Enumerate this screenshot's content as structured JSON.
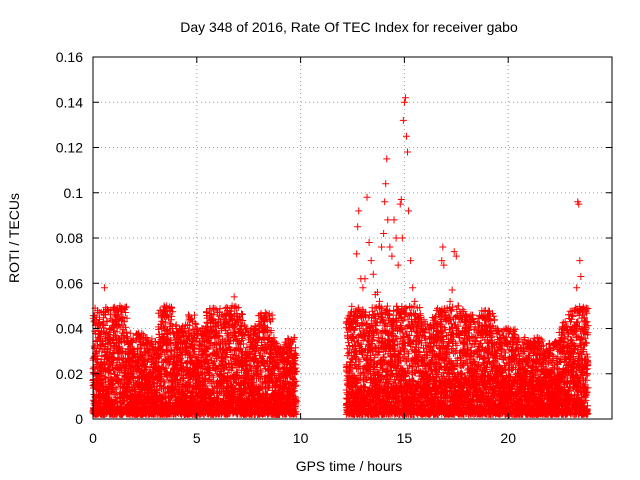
{
  "chart_data": {
    "type": "scatter",
    "title": "Day 348 of 2016, Rate Of TEC Index for receiver gabo",
    "xlabel": "GPS time / hours",
    "ylabel": "ROTI / TECUs",
    "xlim": [
      0,
      24
    ],
    "ylim": [
      0,
      0.16
    ],
    "xticks": [
      0,
      5,
      10,
      15,
      20,
      25
    ],
    "xtick_labels": [
      "0",
      "5",
      "10",
      "15",
      "20",
      ""
    ],
    "yticks": [
      0,
      0.02,
      0.04,
      0.06,
      0.08,
      0.1,
      0.12,
      0.14,
      0.16
    ],
    "ytick_labels": [
      "0",
      "0.02",
      "0.04",
      "0.06",
      "0.08",
      "0.1",
      "0.12",
      "0.14",
      "0.16"
    ],
    "grid": true,
    "marker": "+",
    "color": "#ff0000",
    "series": [
      {
        "name": "ROTI",
        "points": [
          [
            0.05,
            0.043
          ],
          [
            0.1,
            0.049
          ],
          [
            0.15,
            0.045
          ],
          [
            0.2,
            0.04
          ],
          [
            0.25,
            0.036
          ],
          [
            0.3,
            0.03
          ],
          [
            0.4,
            0.033
          ],
          [
            0.5,
            0.047
          ],
          [
            0.55,
            0.058
          ],
          [
            0.6,
            0.046
          ],
          [
            0.8,
            0.036
          ],
          [
            1.0,
            0.029
          ],
          [
            1.2,
            0.044
          ],
          [
            1.3,
            0.05
          ],
          [
            1.5,
            0.038
          ],
          [
            1.7,
            0.034
          ],
          [
            1.9,
            0.031
          ],
          [
            2.2,
            0.038
          ],
          [
            2.4,
            0.033
          ],
          [
            2.6,
            0.036
          ],
          [
            2.8,
            0.033
          ],
          [
            3.0,
            0.031
          ],
          [
            3.2,
            0.036
          ],
          [
            3.4,
            0.034
          ],
          [
            3.5,
            0.048
          ],
          [
            3.55,
            0.05
          ],
          [
            3.7,
            0.042
          ],
          [
            3.9,
            0.03
          ],
          [
            4.2,
            0.036
          ],
          [
            4.4,
            0.04
          ],
          [
            4.6,
            0.046
          ],
          [
            4.7,
            0.044
          ],
          [
            4.9,
            0.036
          ],
          [
            5.1,
            0.031
          ],
          [
            5.3,
            0.04
          ],
          [
            5.5,
            0.038
          ],
          [
            5.7,
            0.044
          ],
          [
            5.8,
            0.049
          ],
          [
            6.0,
            0.047
          ],
          [
            6.2,
            0.046
          ],
          [
            6.4,
            0.041
          ],
          [
            6.5,
            0.037
          ],
          [
            6.7,
            0.05
          ],
          [
            6.8,
            0.054
          ],
          [
            6.9,
            0.049
          ],
          [
            7.0,
            0.043
          ],
          [
            7.2,
            0.038
          ],
          [
            7.4,
            0.04
          ],
          [
            7.6,
            0.036
          ],
          [
            7.8,
            0.041
          ],
          [
            8.0,
            0.039
          ],
          [
            8.2,
            0.044
          ],
          [
            8.3,
            0.047
          ],
          [
            8.5,
            0.036
          ],
          [
            8.8,
            0.031
          ],
          [
            9.0,
            0.029
          ],
          [
            9.2,
            0.032
          ],
          [
            9.4,
            0.031
          ],
          [
            9.6,
            0.034
          ],
          [
            9.7,
            0.036
          ],
          [
            12.3,
            0.043
          ],
          [
            12.4,
            0.04
          ],
          [
            12.5,
            0.036
          ],
          [
            12.6,
            0.046
          ],
          [
            12.7,
            0.073
          ],
          [
            12.75,
            0.085
          ],
          [
            12.8,
            0.092
          ],
          [
            12.9,
            0.062
          ],
          [
            13.0,
            0.058
          ],
          [
            13.1,
            0.062
          ],
          [
            13.2,
            0.098
          ],
          [
            13.3,
            0.078
          ],
          [
            13.4,
            0.07
          ],
          [
            13.5,
            0.064
          ],
          [
            13.6,
            0.055
          ],
          [
            13.7,
            0.056
          ],
          [
            13.8,
            0.052
          ],
          [
            13.9,
            0.076
          ],
          [
            14.0,
            0.082
          ],
          [
            14.05,
            0.096
          ],
          [
            14.1,
            0.104
          ],
          [
            14.15,
            0.115
          ],
          [
            14.2,
            0.088
          ],
          [
            14.3,
            0.076
          ],
          [
            14.4,
            0.072
          ],
          [
            14.5,
            0.088
          ],
          [
            14.6,
            0.08
          ],
          [
            14.7,
            0.068
          ],
          [
            14.8,
            0.095
          ],
          [
            14.85,
            0.097
          ],
          [
            14.9,
            0.08
          ],
          [
            14.95,
            0.132
          ],
          [
            15.0,
            0.14
          ],
          [
            15.05,
            0.142
          ],
          [
            15.1,
            0.125
          ],
          [
            15.15,
            0.118
          ],
          [
            15.2,
            0.092
          ],
          [
            15.3,
            0.07
          ],
          [
            15.4,
            0.058
          ],
          [
            15.5,
            0.052
          ],
          [
            15.6,
            0.044
          ],
          [
            15.8,
            0.04
          ],
          [
            16.0,
            0.042
          ],
          [
            16.2,
            0.038
          ],
          [
            16.4,
            0.04
          ],
          [
            16.6,
            0.042
          ],
          [
            16.7,
            0.048
          ],
          [
            16.8,
            0.07
          ],
          [
            16.85,
            0.076
          ],
          [
            16.9,
            0.068
          ],
          [
            17.0,
            0.046
          ],
          [
            17.2,
            0.052
          ],
          [
            17.3,
            0.057
          ],
          [
            17.4,
            0.074
          ],
          [
            17.5,
            0.072
          ],
          [
            17.6,
            0.05
          ],
          [
            17.8,
            0.044
          ],
          [
            18.0,
            0.04
          ],
          [
            18.2,
            0.046
          ],
          [
            18.3,
            0.044
          ],
          [
            18.5,
            0.036
          ],
          [
            18.7,
            0.038
          ],
          [
            18.9,
            0.048
          ],
          [
            19.0,
            0.046
          ],
          [
            19.2,
            0.038
          ],
          [
            19.4,
            0.04
          ],
          [
            19.6,
            0.036
          ],
          [
            19.8,
            0.034
          ],
          [
            20.0,
            0.04
          ],
          [
            20.2,
            0.036
          ],
          [
            20.4,
            0.033
          ],
          [
            20.6,
            0.031
          ],
          [
            20.8,
            0.036
          ],
          [
            21.0,
            0.033
          ],
          [
            21.2,
            0.029
          ],
          [
            21.4,
            0.036
          ],
          [
            21.6,
            0.032
          ],
          [
            21.8,
            0.029
          ],
          [
            22.0,
            0.031
          ],
          [
            22.3,
            0.034
          ],
          [
            22.6,
            0.036
          ],
          [
            22.8,
            0.041
          ],
          [
            23.0,
            0.043
          ],
          [
            23.1,
            0.038
          ],
          [
            23.2,
            0.048
          ],
          [
            23.3,
            0.058
          ],
          [
            23.35,
            0.096
          ],
          [
            23.4,
            0.095
          ],
          [
            23.45,
            0.07
          ],
          [
            23.5,
            0.063
          ],
          [
            23.6,
            0.046
          ],
          [
            23.7,
            0.042
          ],
          [
            23.8,
            0.043
          ]
        ]
      }
    ]
  }
}
